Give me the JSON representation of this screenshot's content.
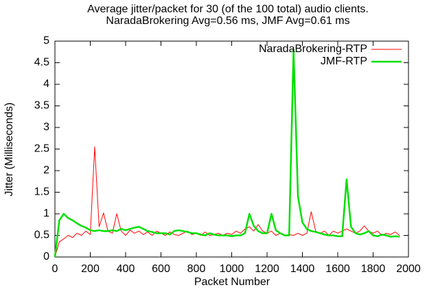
{
  "chart_data": {
    "type": "line",
    "title": "Average jitter/packet for 30 (of the 100 total) audio clients.",
    "subtitle": "NaradaBrokering Avg=0.56 ms, JMF Avg=0.61 ms",
    "xlabel": "Packet Number",
    "ylabel": "Jitter  (Milliseconds)",
    "x": [
      0,
      25,
      50,
      75,
      100,
      125,
      150,
      175,
      200,
      225,
      250,
      275,
      300,
      325,
      350,
      375,
      400,
      425,
      450,
      475,
      500,
      525,
      550,
      575,
      600,
      625,
      650,
      675,
      700,
      725,
      750,
      775,
      800,
      825,
      850,
      875,
      900,
      925,
      950,
      975,
      1000,
      1025,
      1050,
      1075,
      1100,
      1125,
      1150,
      1175,
      1200,
      1225,
      1250,
      1275,
      1300,
      1325,
      1350,
      1375,
      1400,
      1425,
      1450,
      1475,
      1500,
      1525,
      1550,
      1575,
      1600,
      1625,
      1650,
      1675,
      1700,
      1725,
      1750,
      1775,
      1800,
      1825,
      1850,
      1875,
      1900,
      1925,
      1950
    ],
    "series": [
      {
        "name": "NaradaBrokering-RTP",
        "color": "#ff0000",
        "width": 1,
        "values": [
          0,
          0.35,
          0.42,
          0.5,
          0.45,
          0.55,
          0.5,
          0.6,
          0.52,
          2.55,
          0.7,
          1.02,
          0.6,
          0.55,
          1.0,
          0.6,
          0.5,
          0.62,
          0.55,
          0.6,
          0.52,
          0.58,
          0.5,
          0.6,
          0.55,
          0.5,
          0.58,
          0.52,
          0.5,
          0.55,
          0.6,
          0.52,
          0.55,
          0.5,
          0.58,
          0.5,
          0.52,
          0.55,
          0.5,
          0.55,
          0.52,
          0.6,
          0.55,
          0.65,
          0.7,
          0.6,
          0.75,
          0.6,
          0.55,
          0.6,
          0.5,
          0.55,
          0.5,
          0.52,
          0.5,
          0.55,
          0.5,
          0.55,
          1.05,
          0.6,
          0.55,
          0.6,
          0.5,
          0.6,
          0.55,
          0.6,
          0.65,
          0.6,
          0.55,
          0.6,
          0.72,
          0.6,
          0.55,
          0.6,
          0.5,
          0.55,
          0.52,
          0.58,
          0.5
        ]
      },
      {
        "name": "JMF-RTP",
        "color": "#00e000",
        "width": 2.5,
        "values": [
          0,
          0.85,
          1.0,
          0.9,
          0.85,
          0.78,
          0.72,
          0.68,
          0.62,
          0.6,
          0.62,
          0.6,
          0.6,
          0.62,
          0.6,
          0.65,
          0.62,
          0.65,
          0.68,
          0.7,
          0.65,
          0.6,
          0.58,
          0.55,
          0.55,
          0.55,
          0.52,
          0.6,
          0.62,
          0.6,
          0.58,
          0.55,
          0.55,
          0.52,
          0.5,
          0.55,
          0.52,
          0.5,
          0.5,
          0.5,
          0.48,
          0.5,
          0.5,
          0.55,
          1.0,
          0.72,
          0.6,
          0.55,
          0.55,
          1.0,
          0.62,
          0.55,
          0.5,
          0.5,
          4.8,
          1.4,
          0.8,
          0.65,
          0.6,
          0.58,
          0.55,
          0.52,
          0.5,
          0.5,
          0.48,
          0.48,
          1.8,
          0.7,
          0.55,
          0.52,
          0.55,
          0.6,
          0.5,
          0.48,
          0.52,
          0.5,
          0.47,
          0.48,
          0.47
        ]
      }
    ],
    "xlim": [
      0,
      2000
    ],
    "xticks": [
      0,
      200,
      400,
      600,
      800,
      1000,
      1200,
      1400,
      1600,
      1800,
      2000
    ],
    "ylim": [
      0,
      5
    ],
    "yticks": [
      0,
      0.5,
      1,
      1.5,
      2,
      2.5,
      3,
      3.5,
      4,
      4.5,
      5
    ],
    "legend": "top-right"
  }
}
